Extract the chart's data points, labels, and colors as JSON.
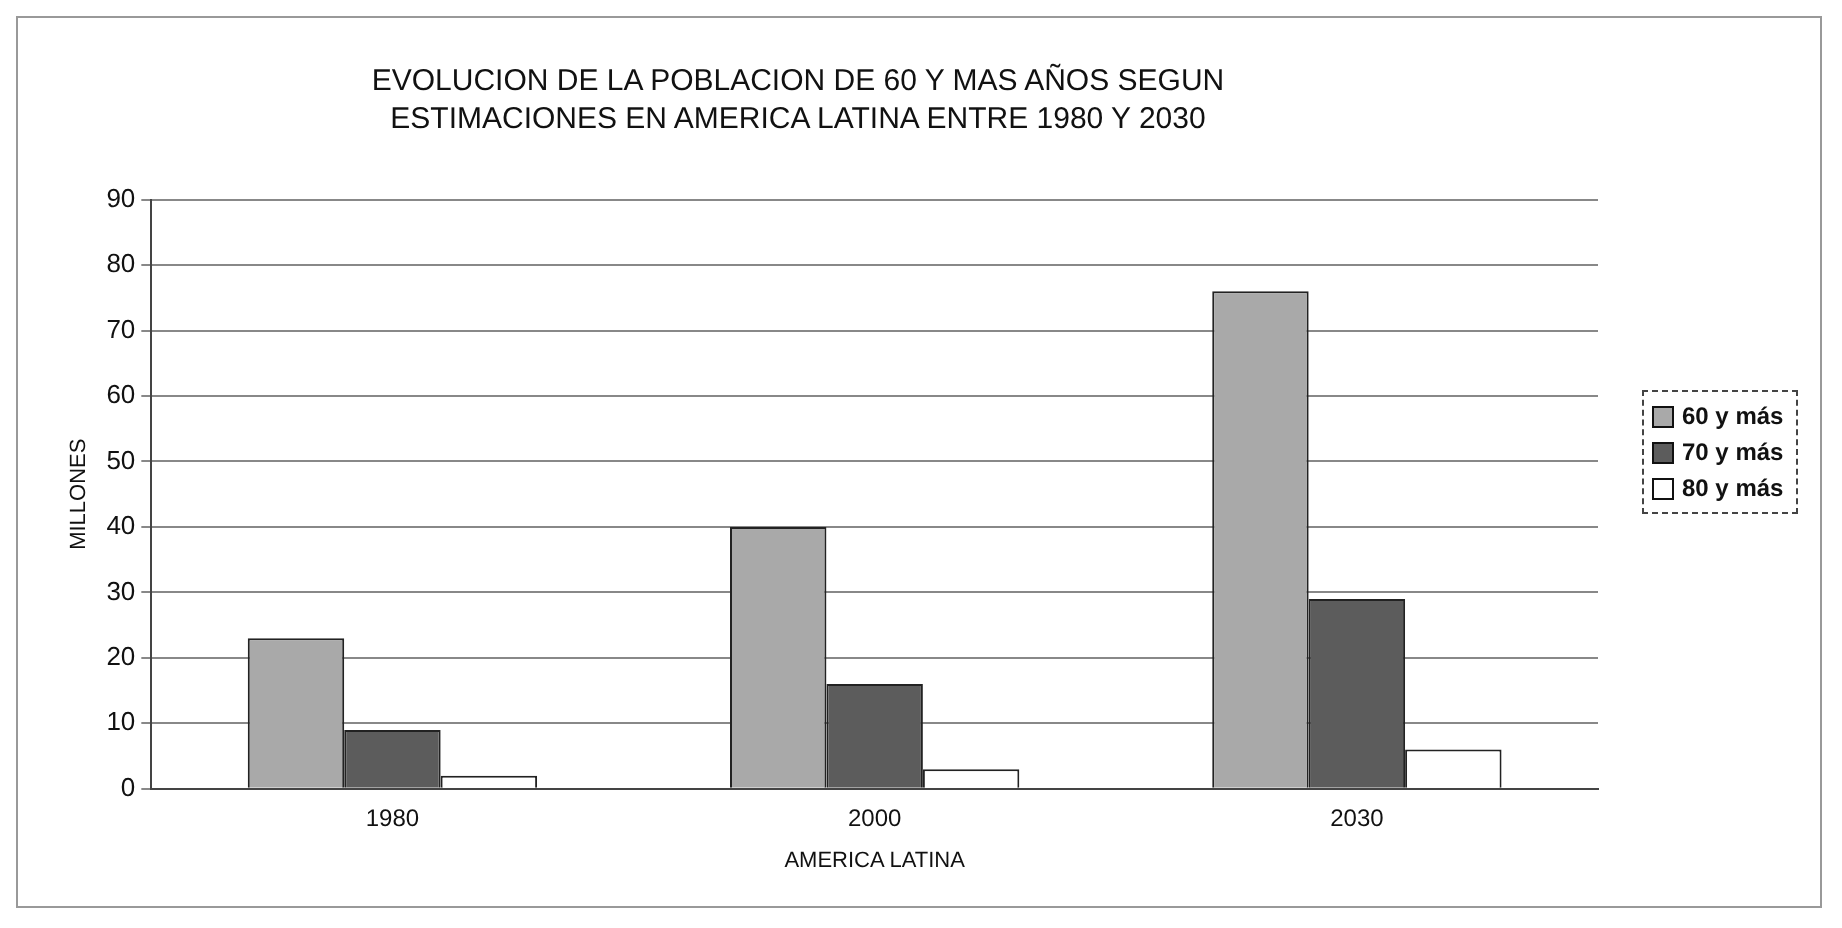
{
  "chart_data": {
    "type": "bar",
    "title": [
      "EVOLUCION DE LA POBLACION DE 60 Y MAS AÑOS SEGUN",
      "ESTIMACIONES EN AMERICA LATINA ENTRE 1980 Y 2030"
    ],
    "xlabel": "AMERICA LATINA",
    "ylabel": "MILLONES",
    "categories": [
      "1980",
      "2000",
      "2030"
    ],
    "series": [
      {
        "name": "60 y más",
        "color": "#a9a9a9",
        "values": [
          23,
          40,
          76
        ]
      },
      {
        "name": "70 y más",
        "color": "#5c5c5c",
        "values": [
          9,
          16,
          29
        ]
      },
      {
        "name": "80 y más",
        "color": "#ffffff",
        "values": [
          2,
          3,
          6
        ]
      }
    ],
    "ylim": [
      0,
      90
    ],
    "yticks": [
      0,
      10,
      20,
      30,
      40,
      50,
      60,
      70,
      80,
      90
    ],
    "grid": "y",
    "legend": "right"
  }
}
